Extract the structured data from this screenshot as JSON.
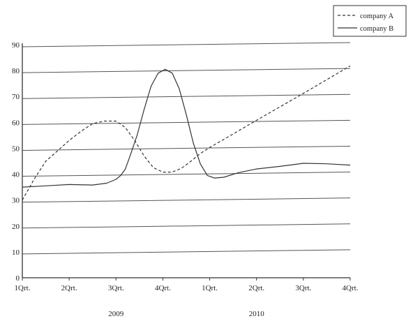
{
  "chart_data": {
    "type": "line",
    "title": "",
    "xlabel": "",
    "ylabel": "",
    "categories": [
      "1Qrt.",
      "2Qrt.",
      "3Qrt.",
      "4Qrt.",
      "1Qrt.",
      "2Qrt.",
      "3Qrt.",
      "4Qrt."
    ],
    "year_labels": [
      {
        "label": "2009",
        "category_index": 2
      },
      {
        "label": "2010",
        "category_index": 5
      }
    ],
    "ylim": [
      0,
      90
    ],
    "yticks": [
      0,
      10,
      20,
      30,
      40,
      50,
      60,
      70,
      80,
      90
    ],
    "grid": "horizontal",
    "legend_position": "top-right",
    "series": [
      {
        "name": "company  A",
        "style": "dashed",
        "color": "#333333",
        "points": [
          [
            0,
            30
          ],
          [
            0.25,
            38
          ],
          [
            0.5,
            45
          ],
          [
            0.75,
            49
          ],
          [
            1,
            53
          ],
          [
            1.25,
            56.5
          ],
          [
            1.5,
            59.5
          ],
          [
            1.75,
            60.5
          ],
          [
            2,
            60.5
          ],
          [
            2.2,
            58
          ],
          [
            2.4,
            53
          ],
          [
            2.6,
            47
          ],
          [
            2.8,
            42.5
          ],
          [
            3,
            40.8
          ],
          [
            3.2,
            40.8
          ],
          [
            3.4,
            42.3
          ],
          [
            3.6,
            45
          ],
          [
            3.8,
            48
          ],
          [
            4,
            50.3
          ],
          [
            4.5,
            55.5
          ],
          [
            5,
            60.8
          ],
          [
            5.5,
            66
          ],
          [
            6,
            71.2
          ],
          [
            6.5,
            76.5
          ],
          [
            7,
            81.8
          ]
        ]
      },
      {
        "name": "company  B",
        "style": "solid",
        "color": "#333333",
        "points": [
          [
            0,
            35
          ],
          [
            0.5,
            35.5
          ],
          [
            1,
            36
          ],
          [
            1.5,
            35.8
          ],
          [
            1.8,
            36.5
          ],
          [
            2,
            38
          ],
          [
            2.1,
            39.5
          ],
          [
            2.2,
            42
          ],
          [
            2.3,
            47
          ],
          [
            2.45,
            55
          ],
          [
            2.6,
            65
          ],
          [
            2.75,
            74
          ],
          [
            2.9,
            79
          ],
          [
            3.05,
            80.5
          ],
          [
            3.2,
            79
          ],
          [
            3.35,
            73
          ],
          [
            3.5,
            63
          ],
          [
            3.65,
            52
          ],
          [
            3.8,
            44
          ],
          [
            3.95,
            39.5
          ],
          [
            4.1,
            38.5
          ],
          [
            4.3,
            38.8
          ],
          [
            4.6,
            40.5
          ],
          [
            5,
            42
          ],
          [
            5.5,
            43
          ],
          [
            6,
            44.2
          ],
          [
            6.5,
            44
          ],
          [
            7,
            43.5
          ]
        ]
      }
    ],
    "colors": {
      "grid": "#555555",
      "frame": "#333333",
      "text": "#222222"
    }
  }
}
